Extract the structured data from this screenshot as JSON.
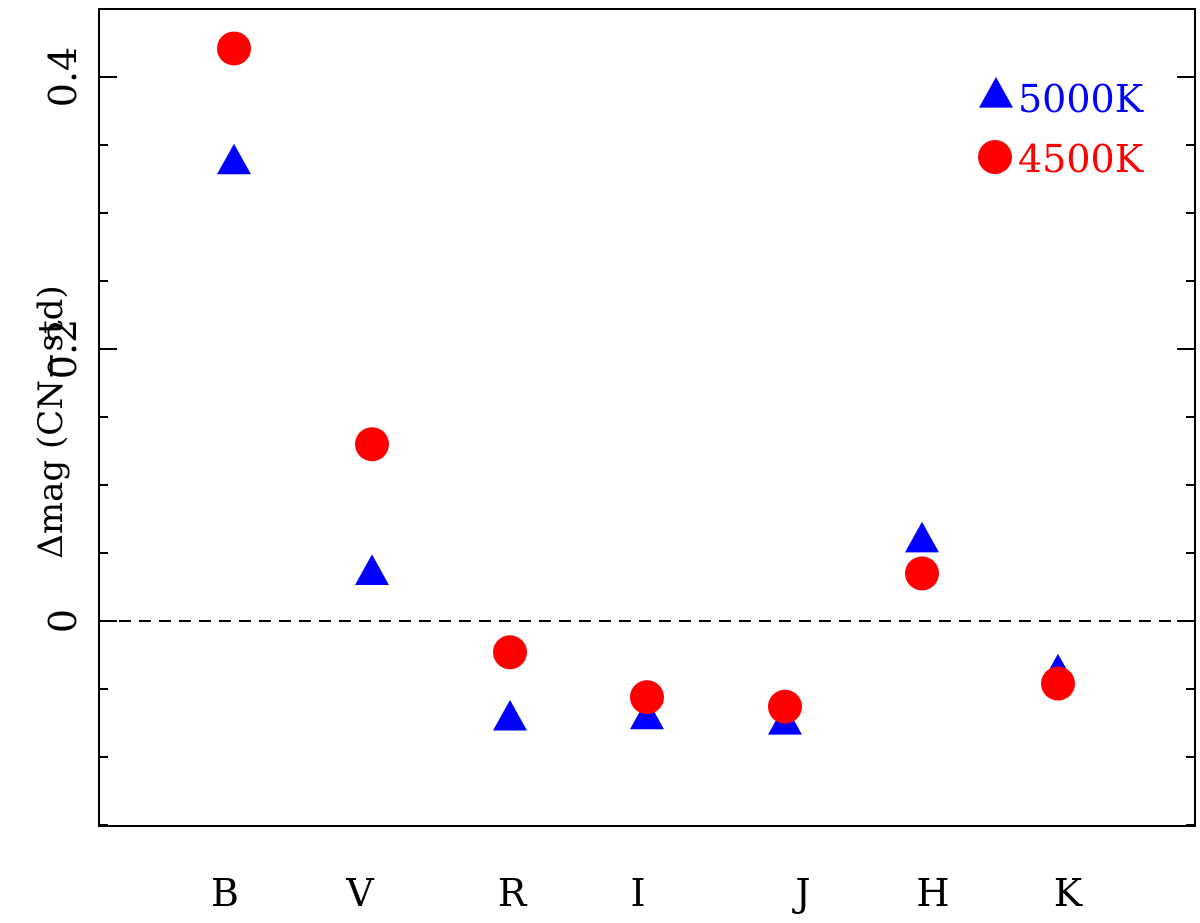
{
  "chart_data": {
    "type": "scatter",
    "title": "",
    "xlabel": "",
    "ylabel": "Δmag (CN−std)",
    "categories": [
      "B",
      "V",
      "R",
      "I",
      "J",
      "H",
      "K"
    ],
    "yticks": [
      {
        "value": 0,
        "label": "0"
      },
      {
        "value": 0.2,
        "label": "0.2"
      },
      {
        "value": 0.4,
        "label": "0.4"
      }
    ],
    "ylim": [
      -0.15,
      0.45
    ],
    "reference_line": {
      "y": 0,
      "style": "dashed"
    },
    "legend_position": "top-right",
    "series": [
      {
        "name": "5000K",
        "marker": "triangle",
        "color": "#0000ff",
        "values": [
          0.337,
          0.035,
          -0.072,
          -0.071,
          -0.075,
          0.059,
          -0.038
        ]
      },
      {
        "name": "4500K",
        "marker": "circle",
        "color": "#ff0000",
        "values": [
          0.421,
          0.13,
          -0.023,
          -0.056,
          -0.063,
          0.035,
          -0.046
        ]
      }
    ]
  }
}
